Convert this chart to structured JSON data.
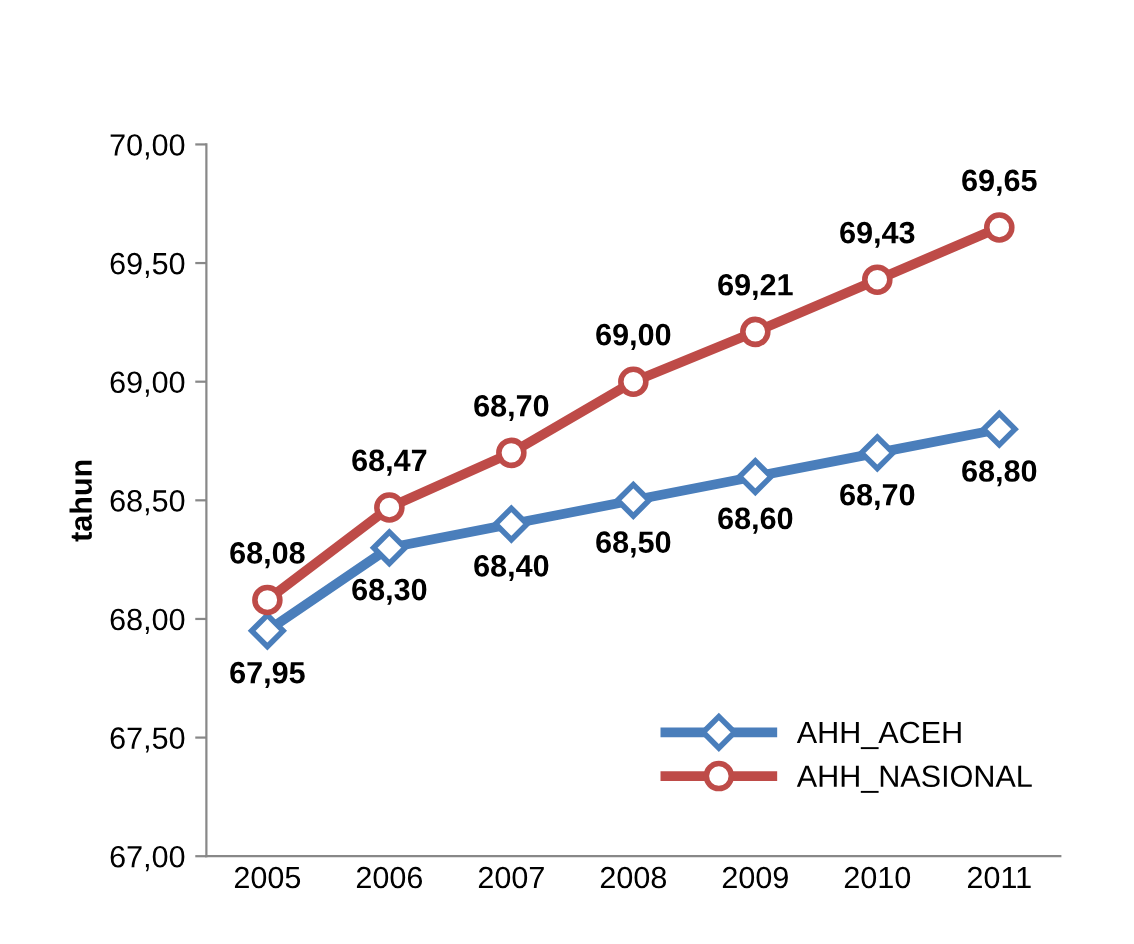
{
  "chart_data": {
    "type": "line",
    "ylabel": "tahun",
    "categories": [
      "2005",
      "2006",
      "2007",
      "2008",
      "2009",
      "2010",
      "2011"
    ],
    "series": [
      {
        "name": "AHH_ACEH",
        "color": "#4a7ebb",
        "marker": "diamond",
        "values": [
          67.95,
          68.3,
          68.4,
          68.5,
          68.6,
          68.7,
          68.8
        ],
        "value_labels": [
          "67,95",
          "68,30",
          "68,40",
          "68,50",
          "68,60",
          "68,70",
          "68,80"
        ]
      },
      {
        "name": "AHH_NASIONAL",
        "color": "#be4b48",
        "marker": "circle",
        "values": [
          68.08,
          68.47,
          68.7,
          69.0,
          69.21,
          69.43,
          69.65
        ],
        "value_labels": [
          "68,08",
          "68,47",
          "68,70",
          "69,00",
          "69,21",
          "69,43",
          "69,65"
        ]
      }
    ],
    "ylim": [
      67.0,
      70.0
    ],
    "yticks": [
      {
        "value": 67.0,
        "label": "67,00"
      },
      {
        "value": 67.5,
        "label": "67,50"
      },
      {
        "value": 68.0,
        "label": "68,00"
      },
      {
        "value": 68.5,
        "label": "68,50"
      },
      {
        "value": 69.0,
        "label": "69,00"
      },
      {
        "value": 69.5,
        "label": "69,50"
      },
      {
        "value": 70.0,
        "label": "70,00"
      }
    ],
    "grid": false,
    "legend": "bottom right",
    "line_style": "solid"
  }
}
